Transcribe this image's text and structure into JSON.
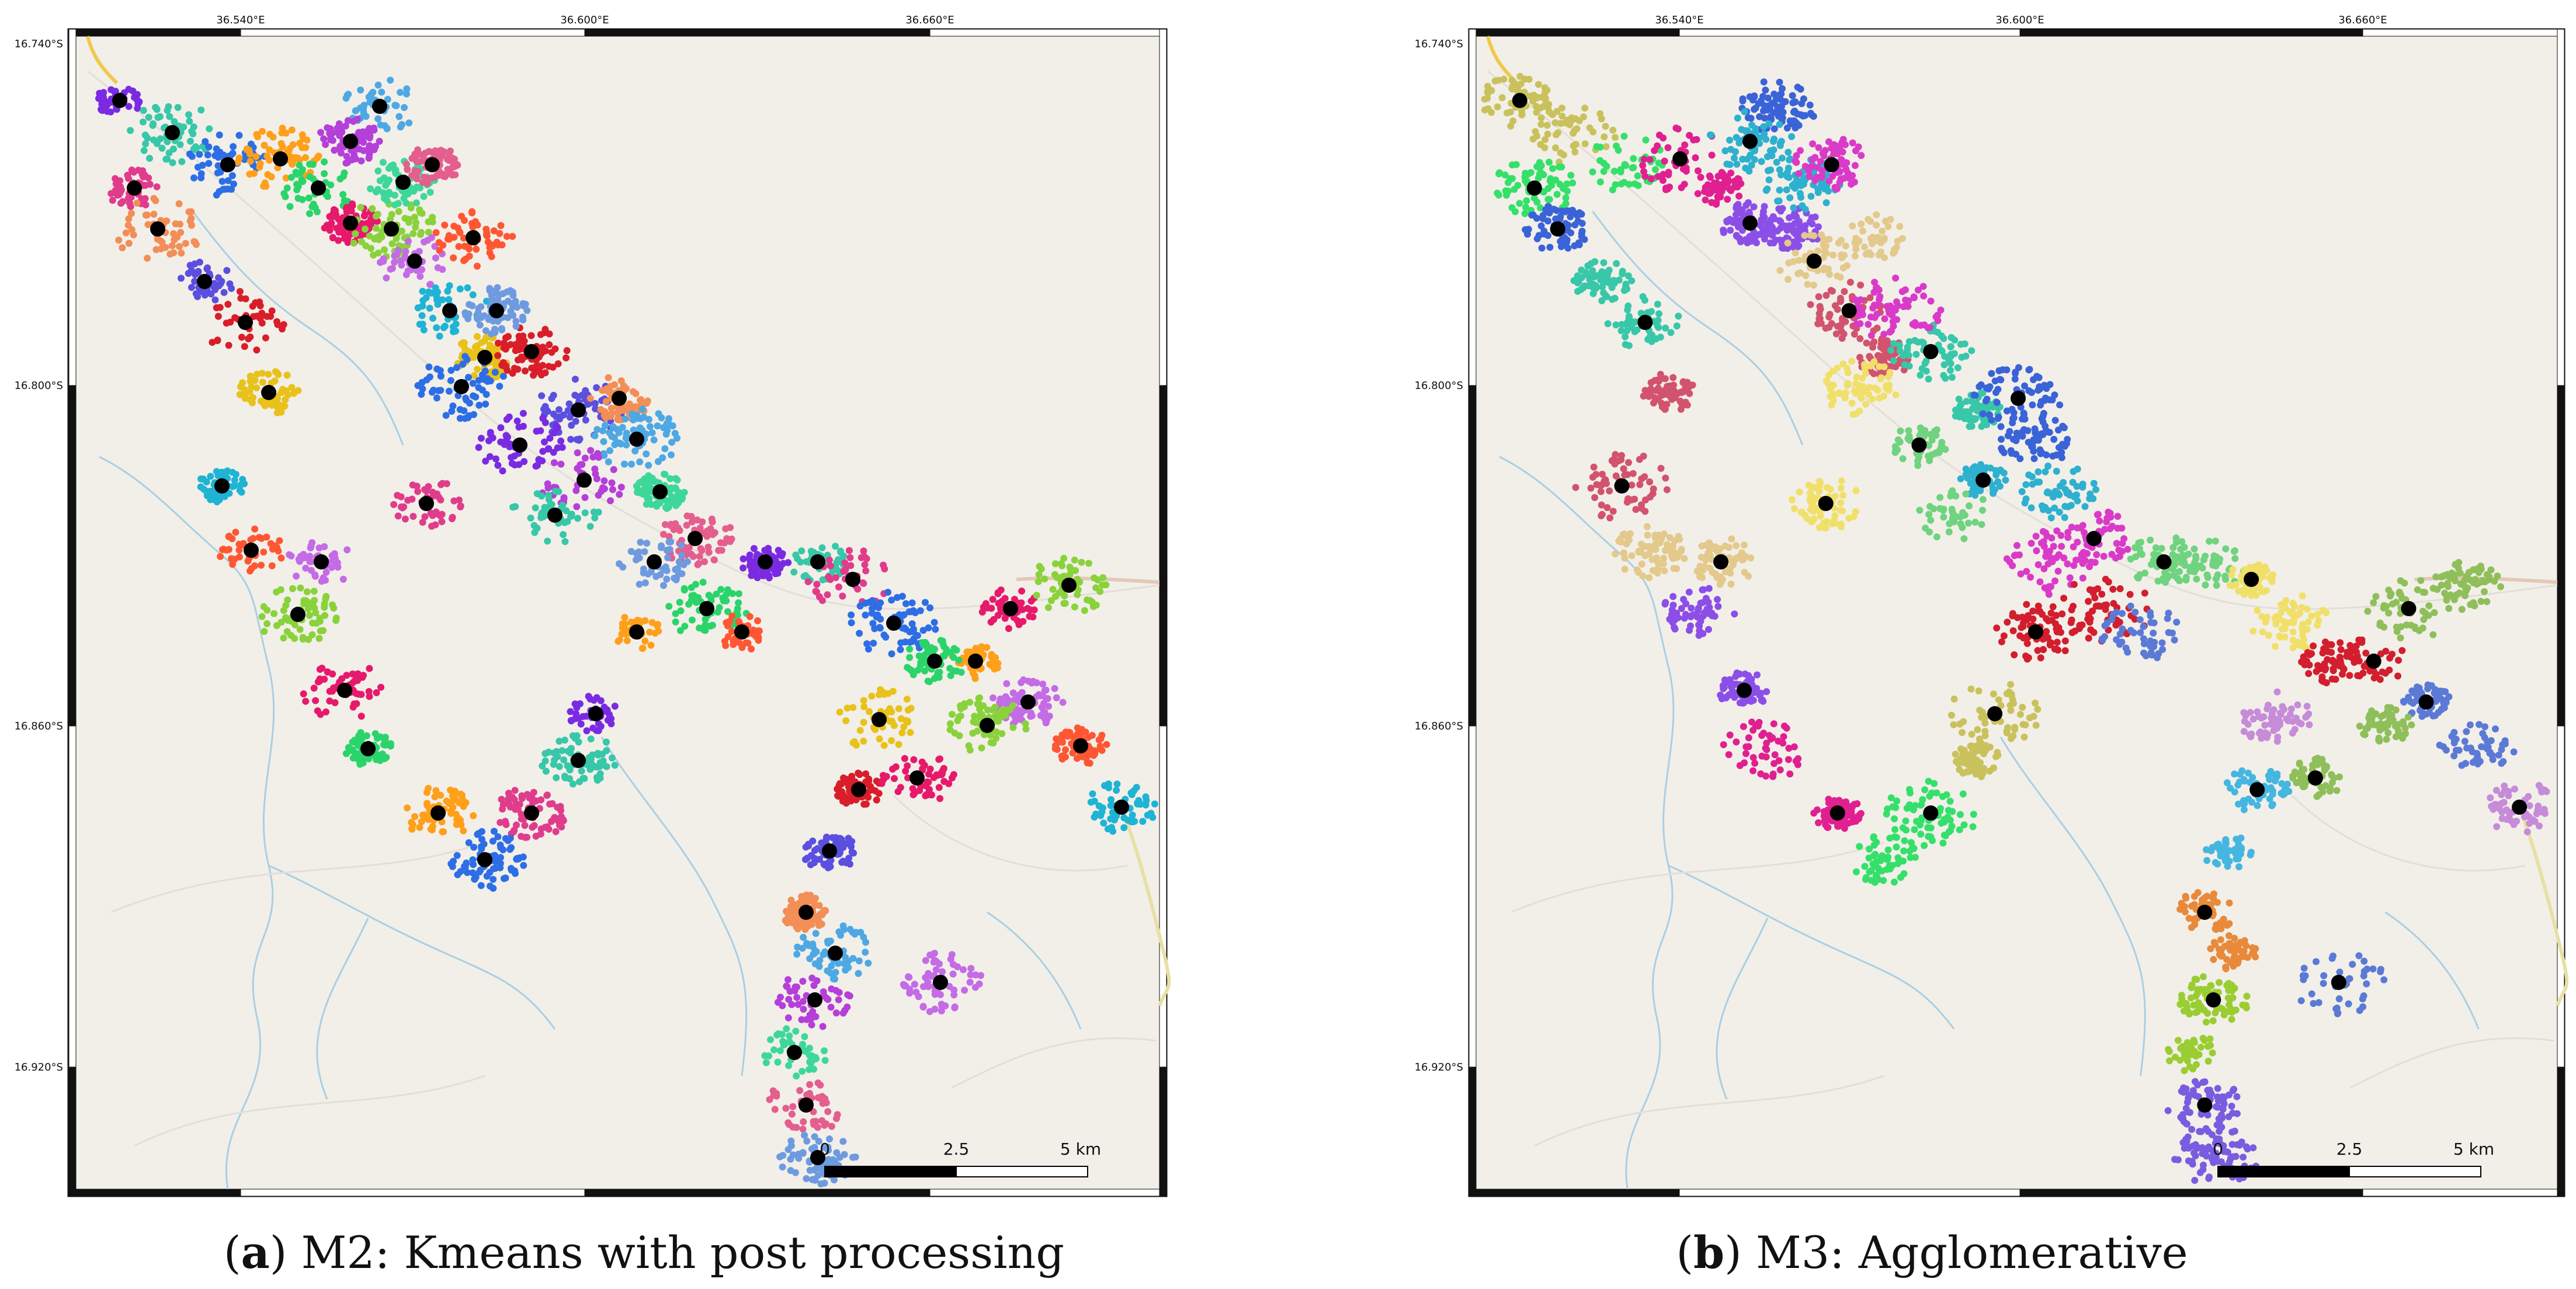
{
  "colors": {
    "map_background": "#f2efe9",
    "river": "#a9cfe3",
    "road_faint": "#e3ded7",
    "road_main": "#e2c9b6",
    "road_yellow": "#e8e0a4",
    "cluster_center": "#000000",
    "frame": "#111111"
  },
  "axes": {
    "lon_ticks": [
      "36.540°E",
      "36.600°E",
      "36.660°E"
    ],
    "lat_ticks": [
      "16.740°S",
      "16.800°S",
      "16.860°S",
      "16.920°S"
    ]
  },
  "scale_bar": {
    "labels": [
      "0",
      "2.5",
      "5 km"
    ]
  },
  "panels": [
    {
      "caption_letter": "a",
      "caption_text": "M2: Kmeans with post processing",
      "method": "Kmeans",
      "palette": [
        "#7a2be2",
        "#38c7a8",
        "#e03c8c",
        "#2d6ee6",
        "#ff9f1a",
        "#2bd46a",
        "#e6196b",
        "#8ad23c",
        "#c46be6",
        "#ff5733",
        "#1fb3d4",
        "#e8c21a",
        "#d91e2a",
        "#5b4fe0",
        "#f28e56",
        "#4ea8e3",
        "#b53fd9",
        "#3ed79a",
        "#e45e8e",
        "#6e9be0"
      ]
    },
    {
      "caption_letter": "b",
      "caption_text": "M3: Agglomerative",
      "method": "Agglomerative",
      "palette": [
        "#c9c25c",
        "#35e06a",
        "#e02090",
        "#8b4fe8",
        "#e3c98b",
        "#d2536e",
        "#38c7a8",
        "#3a63d8",
        "#2eb0cf",
        "#d93bc8",
        "#6fd37f",
        "#f0e06a",
        "#d21e2e",
        "#8fbf5a",
        "#5a7ad6",
        "#c68cd8",
        "#45b6e0",
        "#e88a3a",
        "#9acd32",
        "#7a5ce0"
      ]
    }
  ]
}
